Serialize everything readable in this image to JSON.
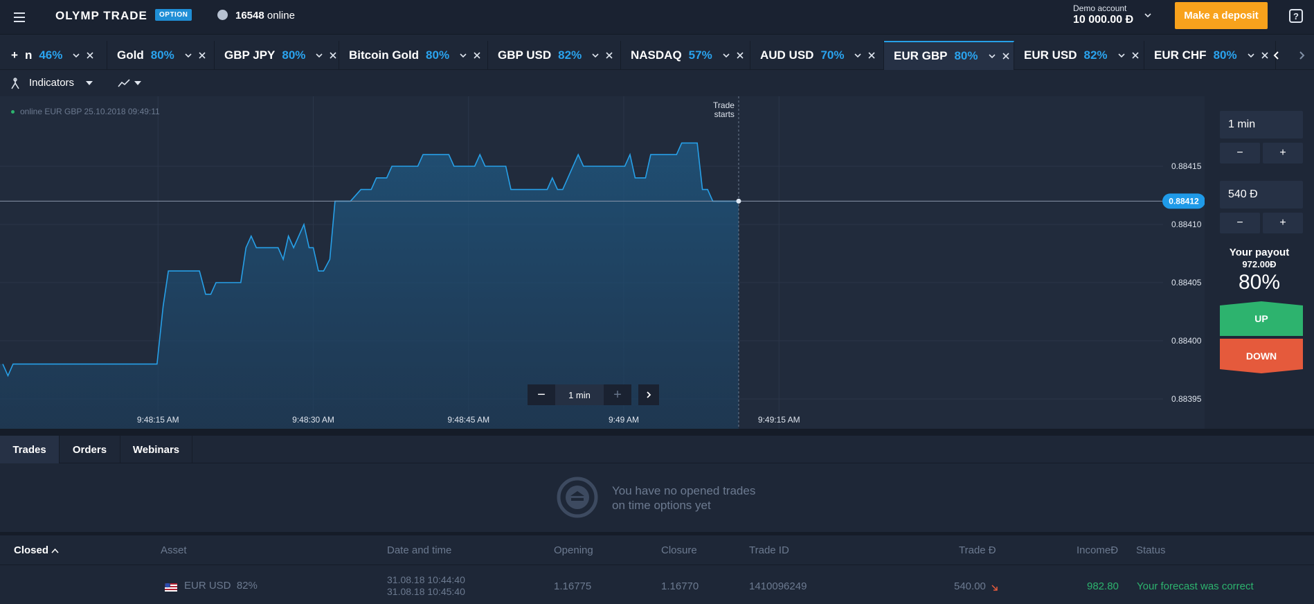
{
  "topbar": {
    "logo": "OLYMP TRADE",
    "logo_badge": "OPTION",
    "online_count": "16548",
    "online_label": "online",
    "account_label": "Demo account",
    "account_balance": "10 000.00 Đ",
    "deposit_label": "Make a deposit",
    "help_label": "?"
  },
  "tabs": [
    {
      "name": "n",
      "pct": "46%",
      "prefix": "+"
    },
    {
      "name": "Gold",
      "pct": "80%"
    },
    {
      "name": "GBP JPY",
      "pct": "80%"
    },
    {
      "name": "Bitcoin Gold",
      "pct": "80%"
    },
    {
      "name": "GBP USD",
      "pct": "82%"
    },
    {
      "name": "NASDAQ",
      "pct": "57%"
    },
    {
      "name": "AUD USD",
      "pct": "70%"
    },
    {
      "name": "EUR GBP",
      "pct": "80%",
      "active": true
    },
    {
      "name": "EUR USD",
      "pct": "82%"
    },
    {
      "name": "EUR CHF",
      "pct": "80%"
    }
  ],
  "toolbar": {
    "indicators_label": "Indicators"
  },
  "chart": {
    "info": "online EUR GBP 25.10.2018 09:49:11",
    "trade_starts": [
      "Trade",
      "starts"
    ],
    "current_price": "0.88412",
    "line_color": "#27a0e8",
    "zoom_value": "1 min",
    "zoom_minus": "−",
    "zoom_plus": "+"
  },
  "chart_data": {
    "type": "area",
    "asset": "EUR GBP",
    "x_tick_labels": [
      "9:48:15 AM",
      "9:48:30 AM",
      "9:48:45 AM",
      "9:49 AM",
      "9:49:15 AM"
    ],
    "y_tick_labels": [
      "0.88415",
      "0.88410",
      "0.88405",
      "0.88400",
      "0.88395"
    ],
    "y_ticks": [
      0.88415,
      0.8841,
      0.88405,
      0.884,
      0.88395
    ],
    "ylim": [
      0.88393,
      0.88418
    ],
    "time_range": [
      "9:48:00",
      "9:49:25"
    ],
    "trade_start_time": "9:49:10",
    "current_value": 0.88412,
    "series": [
      {
        "values": [
          [
            0.0,
            0.88398
          ],
          [
            0.5,
            0.88397
          ],
          [
            1.0,
            0.88398
          ],
          [
            14.9,
            0.88398
          ],
          [
            15.5,
            0.88403
          ],
          [
            16.0,
            0.88406
          ],
          [
            19.0,
            0.88406
          ],
          [
            19.6,
            0.88404
          ],
          [
            20.1,
            0.88404
          ],
          [
            20.6,
            0.88405
          ],
          [
            23.0,
            0.88405
          ],
          [
            23.5,
            0.88408
          ],
          [
            24.0,
            0.88409
          ],
          [
            24.5,
            0.88408
          ],
          [
            26.6,
            0.88408
          ],
          [
            27.1,
            0.88407
          ],
          [
            27.6,
            0.88409
          ],
          [
            28.1,
            0.88408
          ],
          [
            29.1,
            0.8841
          ],
          [
            29.6,
            0.88408
          ],
          [
            30.0,
            0.88408
          ],
          [
            30.5,
            0.88406
          ],
          [
            31.0,
            0.88406
          ],
          [
            31.6,
            0.88407
          ],
          [
            32.1,
            0.88412
          ],
          [
            33.6,
            0.88412
          ],
          [
            34.6,
            0.88413
          ],
          [
            35.6,
            0.88413
          ],
          [
            36.1,
            0.88414
          ],
          [
            37.1,
            0.88414
          ],
          [
            37.6,
            0.88415
          ],
          [
            40.1,
            0.88415
          ],
          [
            40.6,
            0.88416
          ],
          [
            43.1,
            0.88416
          ],
          [
            43.6,
            0.88415
          ],
          [
            45.6,
            0.88415
          ],
          [
            46.1,
            0.88416
          ],
          [
            46.6,
            0.88415
          ],
          [
            48.6,
            0.88415
          ],
          [
            49.1,
            0.88413
          ],
          [
            52.6,
            0.88413
          ],
          [
            53.1,
            0.88414
          ],
          [
            53.6,
            0.88413
          ],
          [
            54.1,
            0.88413
          ],
          [
            55.6,
            0.88416
          ],
          [
            56.1,
            0.88415
          ],
          [
            60.1,
            0.88415
          ],
          [
            60.6,
            0.88416
          ],
          [
            61.1,
            0.88414
          ],
          [
            62.1,
            0.88414
          ],
          [
            62.6,
            0.88416
          ],
          [
            65.1,
            0.88416
          ],
          [
            65.6,
            0.88417
          ],
          [
            67.1,
            0.88417
          ],
          [
            67.6,
            0.88413
          ],
          [
            68.1,
            0.88413
          ],
          [
            68.6,
            0.88412
          ],
          [
            71.1,
            0.88412
          ]
        ]
      }
    ]
  },
  "right_panel": {
    "time_value": "1 min",
    "amount_value": "540 Đ",
    "minus": "−",
    "plus": "+",
    "payout_label": "Your payout",
    "payout_value": "972.00Đ",
    "payout_pct": "80%",
    "up_label": "UP",
    "down_label": "DOWN",
    "up_color": "#2db36e",
    "down_color": "#e55a3c"
  },
  "bottom_tabs": [
    "Trades",
    "Orders",
    "Webinars"
  ],
  "empty_state": {
    "line1": "You have no opened trades",
    "line2": "on time options yet"
  },
  "closed_table": {
    "headers": {
      "closed": "Closed",
      "asset": "Asset",
      "datetime": "Date and time",
      "opening": "Opening",
      "closure": "Closure",
      "trade_id": "Trade ID",
      "trade": "Trade Đ",
      "income": "IncomeĐ",
      "status": "Status"
    },
    "rows": [
      {
        "asset": "EUR USD",
        "asset_pct": "82%",
        "date_open": "31.08.18 10:44:40",
        "date_close": "31.08.18 10:45:40",
        "opening": "1.16775",
        "closure": "1.16770",
        "trade_id": "1410096249",
        "trade": "540.00",
        "income": "982.80",
        "status": "Your forecast was correct"
      }
    ]
  }
}
